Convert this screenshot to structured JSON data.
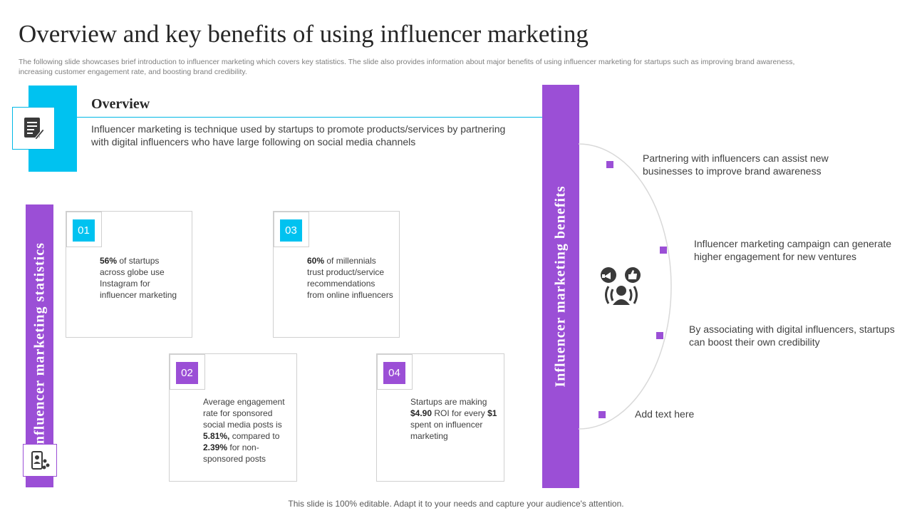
{
  "header": {
    "title": "Overview and key benefits of using influencer marketing",
    "subtitle": "The following slide showcases brief introduction to influencer marketing which covers key statistics. The slide also provides information about major benefits of using influencer marketing for startups such as improving brand awareness, increasing customer engagement rate, and boosting brand credibility."
  },
  "overview": {
    "heading": "Overview",
    "text": "Influencer marketing is technique used by startups to promote products/services by partnering with digital influencers who have large following on social media channels",
    "icon": "document-pen-icon"
  },
  "statistics": {
    "label": "Influencer marketing statistics",
    "icon": "mobile-analytics-icon",
    "cards": [
      {
        "num": "01",
        "bold": "56%",
        "text_after": " of startups across globe use Instagram for influencer marketing"
      },
      {
        "num": "02",
        "text_a": "Average engagement rate for sponsored social media posts is ",
        "bold_a": "5.81%,",
        "text_b": " compared to ",
        "bold_b": "2.39%",
        "text_c": " for non-sponsored posts"
      },
      {
        "num": "03",
        "bold": "60%",
        "text_after": " of millennials trust product/service recommendations from online influencers"
      },
      {
        "num": "04",
        "text_a": "Startups are making ",
        "bold_a": "$4.90",
        "text_b": " ROI for every ",
        "bold_b": "$1",
        "text_c": " spent on influencer marketing"
      }
    ]
  },
  "benefits": {
    "label": "Influencer marketing benefits",
    "icon": "influencer-megaphone-like-icon",
    "items": [
      "Partnering with influencers can assist new businesses to improve brand awareness",
      "Influencer marketing campaign can generate higher engagement for new ventures",
      "By associating with digital influencers, startups can boost their own credibility",
      "Add text here"
    ]
  },
  "colors": {
    "cyan": "#00c2f0",
    "purple": "#9b4fd6"
  },
  "footer": "This slide is 100% editable. Adapt it to your needs and capture your audience's attention."
}
